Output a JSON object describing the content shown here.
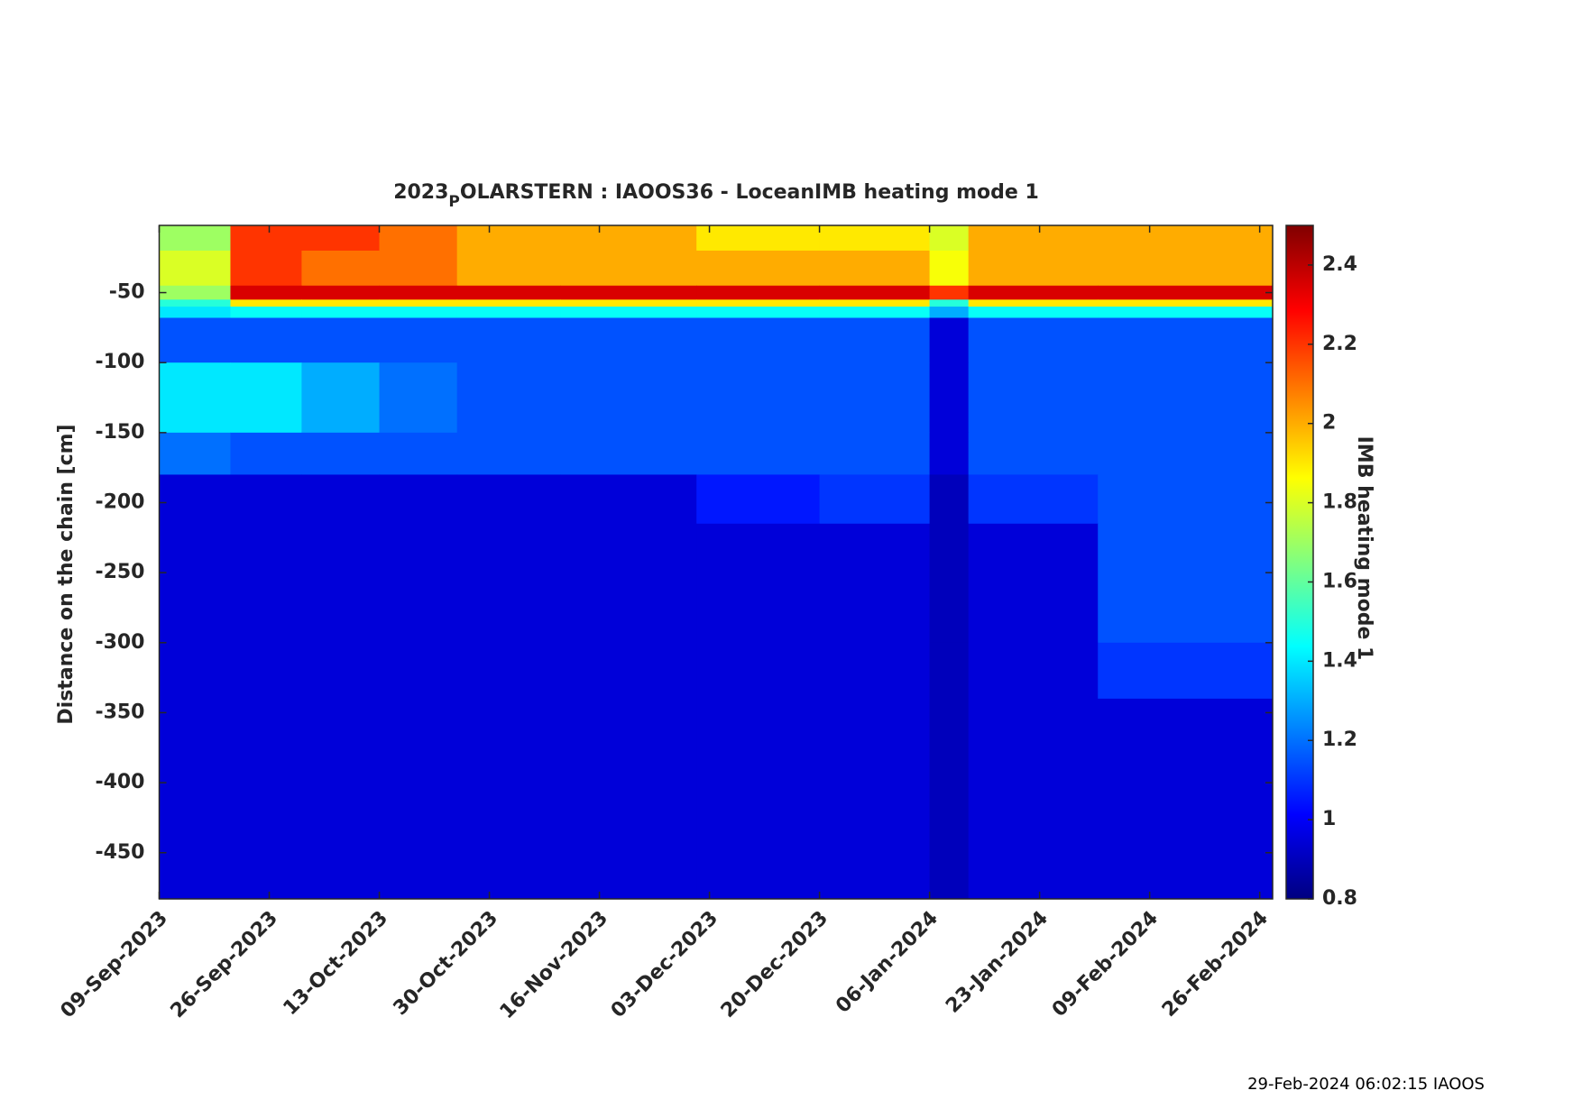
{
  "chart_data": {
    "type": "heatmap",
    "title_parts": [
      "2023",
      "P",
      "OLARSTERN : IAOOS36 - LoceanIMB heating mode 1"
    ],
    "ylabel": "Distance on the chain [cm]",
    "colorbar_label": "IMB heating mode 1",
    "footer": "29-Feb-2024 06:02:15 IAOOS",
    "colormap": "jet",
    "xlim": [
      "09-Sep-2023",
      "28-Feb-2024"
    ],
    "xticks": [
      "09-Sep-2023",
      "26-Sep-2023",
      "13-Oct-2023",
      "30-Oct-2023",
      "16-Nov-2023",
      "03-Dec-2023",
      "20-Dec-2023",
      "06-Jan-2024",
      "23-Jan-2024",
      "09-Feb-2024",
      "26-Feb-2024"
    ],
    "ylim": [
      -483,
      -2
    ],
    "yticks": [
      -50,
      -100,
      -150,
      -200,
      -250,
      -300,
      -350,
      -400,
      -450
    ],
    "clim": [
      0.8,
      2.5
    ],
    "cticks": [
      0.8,
      1,
      1.2,
      1.4,
      1.6,
      1.8,
      2,
      2.2,
      2.4
    ],
    "xbins": [
      "09-Sep-2023",
      "20-Sep-2023",
      "01-Oct-2023",
      "13-Oct-2023",
      "25-Oct-2023",
      "10-Nov-2023",
      "01-Dec-2023",
      "20-Dec-2023",
      "06-Jan-2024",
      "12-Jan-2024",
      "01-Feb-2024",
      "28-Feb-2024"
    ],
    "ybins": [
      -2,
      -20,
      -45,
      -55,
      -60,
      -68,
      -100,
      -150,
      -180,
      -215,
      -300,
      -340,
      -483
    ],
    "values": [
      [
        1.7,
        2.2,
        2.2,
        2.1,
        2.0,
        2.0,
        1.9,
        1.9,
        1.8,
        2.0,
        2.0
      ],
      [
        1.8,
        2.2,
        2.1,
        2.1,
        2.0,
        2.0,
        2.0,
        2.0,
        1.85,
        2.0,
        2.0
      ],
      [
        1.7,
        2.35,
        2.35,
        2.35,
        2.35,
        2.35,
        2.35,
        2.35,
        2.2,
        2.35,
        2.35
      ],
      [
        1.5,
        1.9,
        1.9,
        1.9,
        1.9,
        1.9,
        1.9,
        1.9,
        1.5,
        1.9,
        1.9
      ],
      [
        1.4,
        1.45,
        1.45,
        1.45,
        1.45,
        1.45,
        1.45,
        1.45,
        1.3,
        1.45,
        1.45
      ],
      [
        1.15,
        1.15,
        1.15,
        1.15,
        1.15,
        1.15,
        1.15,
        1.15,
        0.95,
        1.15,
        1.15
      ],
      [
        1.4,
        1.4,
        1.3,
        1.2,
        1.15,
        1.15,
        1.15,
        1.15,
        0.95,
        1.15,
        1.15
      ],
      [
        1.2,
        1.15,
        1.15,
        1.15,
        1.15,
        1.15,
        1.15,
        1.15,
        0.95,
        1.15,
        1.15
      ],
      [
        0.95,
        0.95,
        0.95,
        0.95,
        0.95,
        0.95,
        1.05,
        1.1,
        0.9,
        1.1,
        1.15
      ],
      [
        0.95,
        0.95,
        0.95,
        0.95,
        0.95,
        0.95,
        0.95,
        0.95,
        0.9,
        0.95,
        1.15
      ],
      [
        0.95,
        0.95,
        0.95,
        0.95,
        0.95,
        0.95,
        0.95,
        0.95,
        0.9,
        0.95,
        1.1
      ],
      [
        0.95,
        0.95,
        0.95,
        0.95,
        0.95,
        0.95,
        0.95,
        0.95,
        0.9,
        0.95,
        0.95
      ]
    ]
  }
}
